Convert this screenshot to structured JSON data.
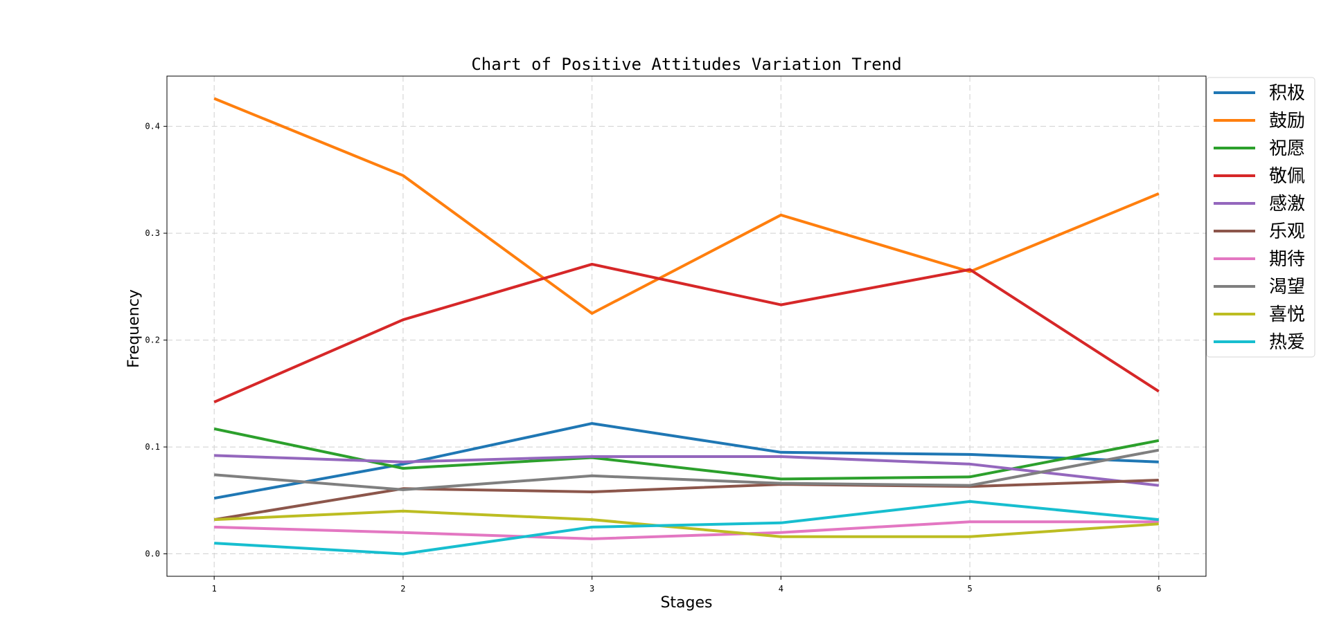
{
  "chart_data": {
    "type": "line",
    "title": "Chart of Positive Attitudes Variation Trend",
    "xlabel": "Stages",
    "ylabel": "Frequency",
    "x": [
      1,
      2,
      3,
      4,
      5,
      6
    ],
    "xlim": [
      0.75,
      6.25
    ],
    "ylim": [
      -0.021,
      0.447
    ],
    "yticks": [
      0.0,
      0.1,
      0.2,
      0.3,
      0.4
    ],
    "ytick_labels": [
      "0.0",
      "0.1",
      "0.2",
      "0.3",
      "0.4"
    ],
    "xtick_labels": [
      "1",
      "2",
      "3",
      "4",
      "5",
      "6"
    ],
    "grid": true,
    "legend_position": "outside-top-right",
    "series": [
      {
        "name": "积极",
        "color": "#1f77b4",
        "values": [
          0.052,
          0.084,
          0.122,
          0.095,
          0.093,
          0.086
        ]
      },
      {
        "name": "鼓励",
        "color": "#ff7f0e",
        "values": [
          0.426,
          0.354,
          0.225,
          0.317,
          0.264,
          0.337
        ]
      },
      {
        "name": "祝愿",
        "color": "#2ca02c",
        "values": [
          0.117,
          0.08,
          0.09,
          0.07,
          0.072,
          0.106
        ]
      },
      {
        "name": "敬佩",
        "color": "#d62728",
        "values": [
          0.142,
          0.219,
          0.271,
          0.233,
          0.266,
          0.152
        ]
      },
      {
        "name": "感激",
        "color": "#9467bd",
        "values": [
          0.092,
          0.086,
          0.091,
          0.091,
          0.084,
          0.064
        ]
      },
      {
        "name": "乐观",
        "color": "#8c564b",
        "values": [
          0.032,
          0.061,
          0.058,
          0.065,
          0.063,
          0.069
        ]
      },
      {
        "name": "期待",
        "color": "#e377c2",
        "values": [
          0.025,
          0.02,
          0.014,
          0.02,
          0.03,
          0.03
        ]
      },
      {
        "name": "渴望",
        "color": "#7f7f7f",
        "values": [
          0.074,
          0.06,
          0.073,
          0.066,
          0.064,
          0.097
        ]
      },
      {
        "name": "喜悦",
        "color": "#bcbd22",
        "values": [
          0.032,
          0.04,
          0.032,
          0.016,
          0.016,
          0.028
        ]
      },
      {
        "name": "热爱",
        "color": "#17becf",
        "values": [
          0.01,
          0.0,
          0.025,
          0.029,
          0.049,
          0.032
        ]
      }
    ]
  }
}
